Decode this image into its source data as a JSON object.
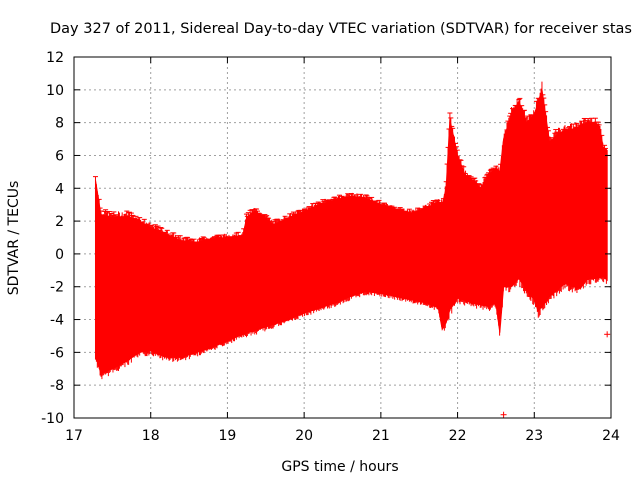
{
  "chart_data": {
    "type": "area",
    "title": "Day 327 of 2011, Sidereal Day-to-day VTEC variation (SDTVAR) for receiver stas",
    "xlabel": "GPS time / hours",
    "ylabel": "SDTVAR / TECUs",
    "xlim": [
      17,
      24
    ],
    "ylim": [
      -10,
      12
    ],
    "xticks": [
      "17",
      "18",
      "19",
      "20",
      "21",
      "22",
      "23",
      "24"
    ],
    "yticks": [
      "-10",
      "-8",
      "-6",
      "-4",
      "-2",
      "0",
      "2",
      "4",
      "6",
      "8",
      "10",
      "12"
    ],
    "grid": true,
    "series_color": "#ff0000",
    "series": [
      {
        "name": "SDTVAR",
        "style": "vertical error-bar envelope",
        "upper": [
          [
            17.28,
            4.5
          ],
          [
            17.35,
            2.4
          ],
          [
            17.5,
            2.2
          ],
          [
            17.7,
            2.3
          ],
          [
            17.85,
            2.0
          ],
          [
            18.0,
            1.6
          ],
          [
            18.2,
            1.2
          ],
          [
            18.4,
            0.8
          ],
          [
            18.6,
            0.7
          ],
          [
            18.8,
            0.9
          ],
          [
            19.0,
            1.0
          ],
          [
            19.2,
            1.1
          ],
          [
            19.25,
            2.2
          ],
          [
            19.35,
            2.6
          ],
          [
            19.45,
            2.3
          ],
          [
            19.6,
            1.8
          ],
          [
            19.8,
            2.2
          ],
          [
            20.0,
            2.6
          ],
          [
            20.2,
            3.0
          ],
          [
            20.4,
            3.3
          ],
          [
            20.6,
            3.5
          ],
          [
            20.8,
            3.4
          ],
          [
            21.0,
            3.0
          ],
          [
            21.2,
            2.7
          ],
          [
            21.4,
            2.5
          ],
          [
            21.6,
            2.8
          ],
          [
            21.75,
            3.2
          ],
          [
            21.8,
            3.0
          ],
          [
            21.85,
            4.0
          ],
          [
            21.9,
            8.2
          ],
          [
            22.0,
            6.0
          ],
          [
            22.1,
            4.8
          ],
          [
            22.2,
            4.5
          ],
          [
            22.3,
            4.0
          ],
          [
            22.4,
            4.8
          ],
          [
            22.5,
            5.2
          ],
          [
            22.55,
            5.0
          ],
          [
            22.6,
            7.0
          ],
          [
            22.7,
            8.5
          ],
          [
            22.8,
            9.3
          ],
          [
            22.9,
            8.0
          ],
          [
            23.0,
            8.5
          ],
          [
            23.1,
            10.0
          ],
          [
            23.2,
            6.8
          ],
          [
            23.3,
            7.3
          ],
          [
            23.4,
            7.5
          ],
          [
            23.5,
            7.6
          ],
          [
            23.6,
            7.8
          ],
          [
            23.7,
            8.0
          ],
          [
            23.8,
            8.0
          ],
          [
            23.85,
            7.7
          ],
          [
            23.9,
            6.5
          ],
          [
            23.95,
            6.3
          ]
        ],
        "lower": [
          [
            17.28,
            -6.2
          ],
          [
            17.35,
            -7.3
          ],
          [
            17.5,
            -7.0
          ],
          [
            17.7,
            -6.5
          ],
          [
            17.85,
            -6.0
          ],
          [
            18.0,
            -5.9
          ],
          [
            18.2,
            -6.3
          ],
          [
            18.4,
            -6.3
          ],
          [
            18.6,
            -6.0
          ],
          [
            18.8,
            -5.7
          ],
          [
            19.0,
            -5.3
          ],
          [
            19.2,
            -4.9
          ],
          [
            19.4,
            -4.6
          ],
          [
            19.6,
            -4.3
          ],
          [
            19.8,
            -4.0
          ],
          [
            20.0,
            -3.6
          ],
          [
            20.2,
            -3.3
          ],
          [
            20.4,
            -3.0
          ],
          [
            20.6,
            -2.6
          ],
          [
            20.8,
            -2.3
          ],
          [
            21.0,
            -2.4
          ],
          [
            21.2,
            -2.6
          ],
          [
            21.4,
            -2.8
          ],
          [
            21.6,
            -3.0
          ],
          [
            21.75,
            -3.3
          ],
          [
            21.8,
            -4.6
          ],
          [
            21.85,
            -4.2
          ],
          [
            21.9,
            -3.4
          ],
          [
            22.0,
            -2.7
          ],
          [
            22.2,
            -3.0
          ],
          [
            22.4,
            -3.2
          ],
          [
            22.5,
            -3.0
          ],
          [
            22.55,
            -4.8
          ],
          [
            22.6,
            -2.0
          ],
          [
            22.7,
            -2.0
          ],
          [
            22.8,
            -1.5
          ],
          [
            22.9,
            -2.2
          ],
          [
            23.0,
            -2.8
          ],
          [
            23.05,
            -3.5
          ],
          [
            23.1,
            -3.2
          ],
          [
            23.2,
            -2.6
          ],
          [
            23.3,
            -2.2
          ],
          [
            23.4,
            -1.8
          ],
          [
            23.5,
            -2.0
          ],
          [
            23.6,
            -2.1
          ],
          [
            23.7,
            -1.5
          ],
          [
            23.8,
            -1.5
          ],
          [
            23.9,
            -1.4
          ],
          [
            23.95,
            -1.6
          ]
        ],
        "outliers": [
          [
            22.6,
            -9.8
          ],
          [
            23.95,
            -4.9
          ]
        ]
      }
    ]
  }
}
